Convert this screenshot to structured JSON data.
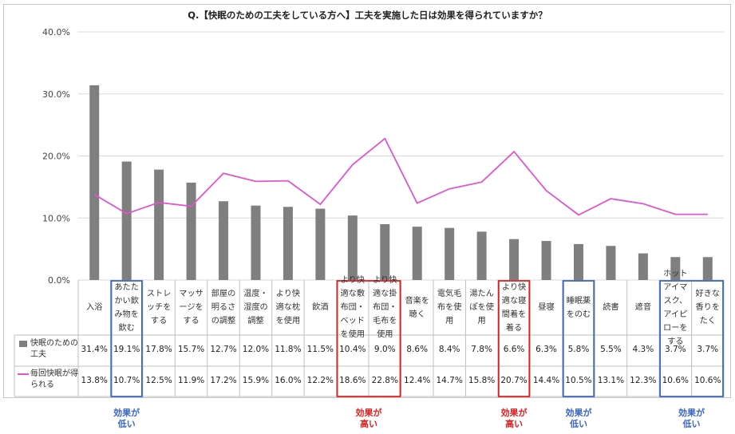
{
  "title": "Q.【快眠のための工夫をしている方へ】工夫を実施した日は効果を得られていますか？",
  "chart_data": {
    "type": "bar",
    "ylim": [
      0,
      40
    ],
    "yticks": [
      "0.0%",
      "10.0%",
      "20.0%",
      "30.0%",
      "40.0%"
    ],
    "grid": true,
    "categories": [
      "入浴",
      "あたたかい飲み物を飲む",
      "ストレッチをする",
      "マッサージをする",
      "部屋の明るさの調整",
      "温度・湿度の調整",
      "より快適な枕を使用",
      "飲酒",
      "より快適な敷布団・ベッドを使用",
      "より快適な掛布団・毛布を使用",
      "音楽を聴く",
      "電気毛布を使用",
      "湯たんぽを使用",
      "より快適な寝間着を着る",
      "昼寝",
      "睡眠薬をのむ",
      "読書",
      "遮音",
      "ホットアイマスク、アイピローをする",
      "好きな香りをたく"
    ],
    "series": [
      {
        "name": "快眠のための工夫",
        "type": "bar",
        "color": "#7f7f7f",
        "values": [
          31.4,
          19.1,
          17.8,
          15.7,
          12.7,
          12.0,
          11.8,
          11.5,
          10.4,
          9.0,
          8.6,
          8.4,
          7.8,
          6.6,
          6.3,
          5.8,
          5.5,
          4.3,
          3.7,
          3.7
        ],
        "labels": [
          "31.4%",
          "19.1%",
          "17.8%",
          "15.7%",
          "12.7%",
          "12.0%",
          "11.8%",
          "11.5%",
          "10.4%",
          "9.0%",
          "8.6%",
          "8.4%",
          "7.8%",
          "6.6%",
          "6.3%",
          "5.8%",
          "5.5%",
          "4.3%",
          "3.7%",
          "3.7%"
        ]
      },
      {
        "name": "毎回快眠が得られる",
        "type": "line",
        "color": "#e055d0",
        "values": [
          13.8,
          10.7,
          12.5,
          11.9,
          17.2,
          15.9,
          16.0,
          12.2,
          18.6,
          22.8,
          12.4,
          14.7,
          15.8,
          20.7,
          14.4,
          10.5,
          13.1,
          12.3,
          10.6,
          10.6
        ],
        "labels": [
          "13.8%",
          "10.7%",
          "12.5%",
          "11.9%",
          "17.2%",
          "15.9%",
          "16.0%",
          "12.2%",
          "18.6%",
          "22.8%",
          "12.4%",
          "14.7%",
          "15.8%",
          "20.7%",
          "14.4%",
          "10.5%",
          "13.1%",
          "12.3%",
          "10.6%",
          "10.6%"
        ]
      }
    ],
    "highlights": [
      {
        "from": 1,
        "to": 1,
        "color": "#3a66c4",
        "text": "効果が\n低い"
      },
      {
        "from": 8,
        "to": 9,
        "color": "#e02020",
        "text": "効果が\n高い"
      },
      {
        "from": 13,
        "to": 13,
        "color": "#e02020",
        "text": "効果が\n高い"
      },
      {
        "from": 15,
        "to": 15,
        "color": "#3a66c4",
        "text": "効果が\n低い"
      },
      {
        "from": 18,
        "to": 19,
        "color": "#3a66c4",
        "text": "効果が\n低い"
      }
    ]
  }
}
